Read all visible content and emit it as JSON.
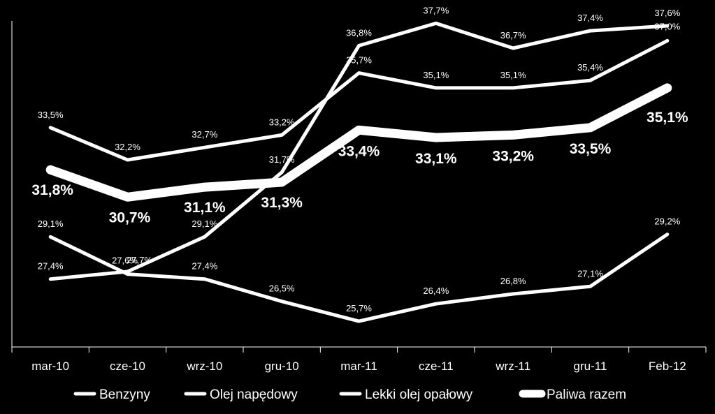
{
  "chart_data": {
    "type": "line",
    "categories": [
      "mar-10",
      "cze-10",
      "wrz-10",
      "gru-10",
      "mar-11",
      "cze-11",
      "wrz-11",
      "gru-11",
      "Feb-12"
    ],
    "series": [
      {
        "name": "Benzyny",
        "values": [
          29.1,
          27.6,
          27.4,
          26.5,
          25.7,
          26.4,
          26.8,
          27.1,
          29.2
        ],
        "labels": [
          "29,1%",
          "27,6%",
          "27,4%",
          "26,5%",
          "25,7%",
          "26,4%",
          "26,8%",
          "27,1%",
          "29,2%"
        ]
      },
      {
        "name": "Olej napędowy",
        "values": [
          33.5,
          32.2,
          32.7,
          33.2,
          35.7,
          35.1,
          35.1,
          35.4,
          37.0
        ],
        "labels": [
          "33,5%",
          "32,2%",
          "32,7%",
          "33,2%",
          "35,7%",
          "35,1%",
          "35,1%",
          "35,4%",
          "37,0%"
        ]
      },
      {
        "name": "Lekki olej opałowy",
        "values": [
          27.4,
          27.7,
          29.1,
          31.7,
          36.8,
          37.7,
          36.7,
          37.4,
          37.6
        ],
        "labels": [
          "27,4%",
          "27,7%",
          "29,1%",
          "31,7%",
          "36,8%",
          "37,7%",
          "36,7%",
          "37,4%",
          "37,6%"
        ]
      },
      {
        "name": "Paliwa razem",
        "values": [
          31.8,
          30.7,
          31.1,
          31.3,
          33.4,
          33.1,
          33.2,
          33.5,
          35.1
        ],
        "labels": [
          "31,8%",
          "30,7%",
          "31,1%",
          "31,3%",
          "33,4%",
          "33,1%",
          "33,2%",
          "33,5%",
          "35,1%"
        ]
      }
    ],
    "ylim": [
      25.0,
      38.5
    ],
    "grid": false,
    "legend": "bottom",
    "colors": {
      "background": "#000000",
      "lines": "#ffffff"
    }
  }
}
